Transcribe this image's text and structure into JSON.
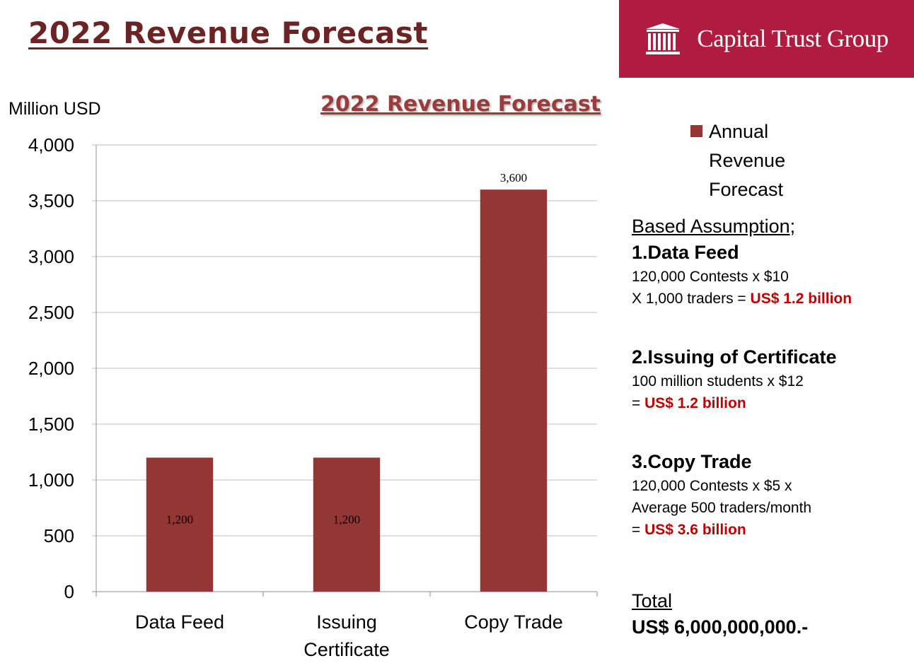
{
  "page_title": "2022 Revenue Forecast",
  "brand": {
    "name": "Capital Trust Group",
    "logo_icon": "columned-building-icon",
    "color": "#b01c3f"
  },
  "chart_data": {
    "type": "bar",
    "title": "2022 Revenue Forecast",
    "ylabel": "Million USD",
    "xlabel": "",
    "categories": [
      [
        "Data Feed"
      ],
      [
        "Issuing",
        "Certificate"
      ],
      [
        "Copy Trade"
      ]
    ],
    "series": [
      {
        "name": "Annual Revenue Forecast",
        "values": [
          1200,
          1200,
          3600
        ],
        "color": "#943634"
      }
    ],
    "data_labels": [
      "1,200",
      "1,200",
      "3,600"
    ],
    "ylim": [
      0,
      4000
    ],
    "yticks": [
      0,
      500,
      1000,
      1500,
      2000,
      2500,
      3000,
      3500,
      4000
    ],
    "ytick_labels": [
      "0",
      "500",
      "1,000",
      "1,500",
      "2,000",
      "2,500",
      "3,000",
      "3,500",
      "4,000"
    ],
    "grid": true,
    "legend": "right"
  },
  "legend": {
    "lines": [
      "Annual",
      "Revenue",
      "Forecast"
    ]
  },
  "assumptions": {
    "heading": "Based Assumption;",
    "items": [
      {
        "title": "1.Data Feed",
        "line1": "120,000 Contests x $10",
        "line2_prefix": "X 1,000 traders = ",
        "result": "US$ 1.2 billion"
      },
      {
        "title": "2.Issuing of Certificate",
        "line1": "100 million students x $12",
        "line2_prefix": "= ",
        "result": "US$ 1.2 billion"
      },
      {
        "title": "3.Copy Trade",
        "line1": "120,000 Contests x $5 x",
        "line1b": "Average 500 traders/month",
        "line2_prefix": "= ",
        "result": "US$ 3.6 billion"
      }
    ]
  },
  "total": {
    "label": "Total",
    "value": "US$ 6,000,000,000.-"
  }
}
